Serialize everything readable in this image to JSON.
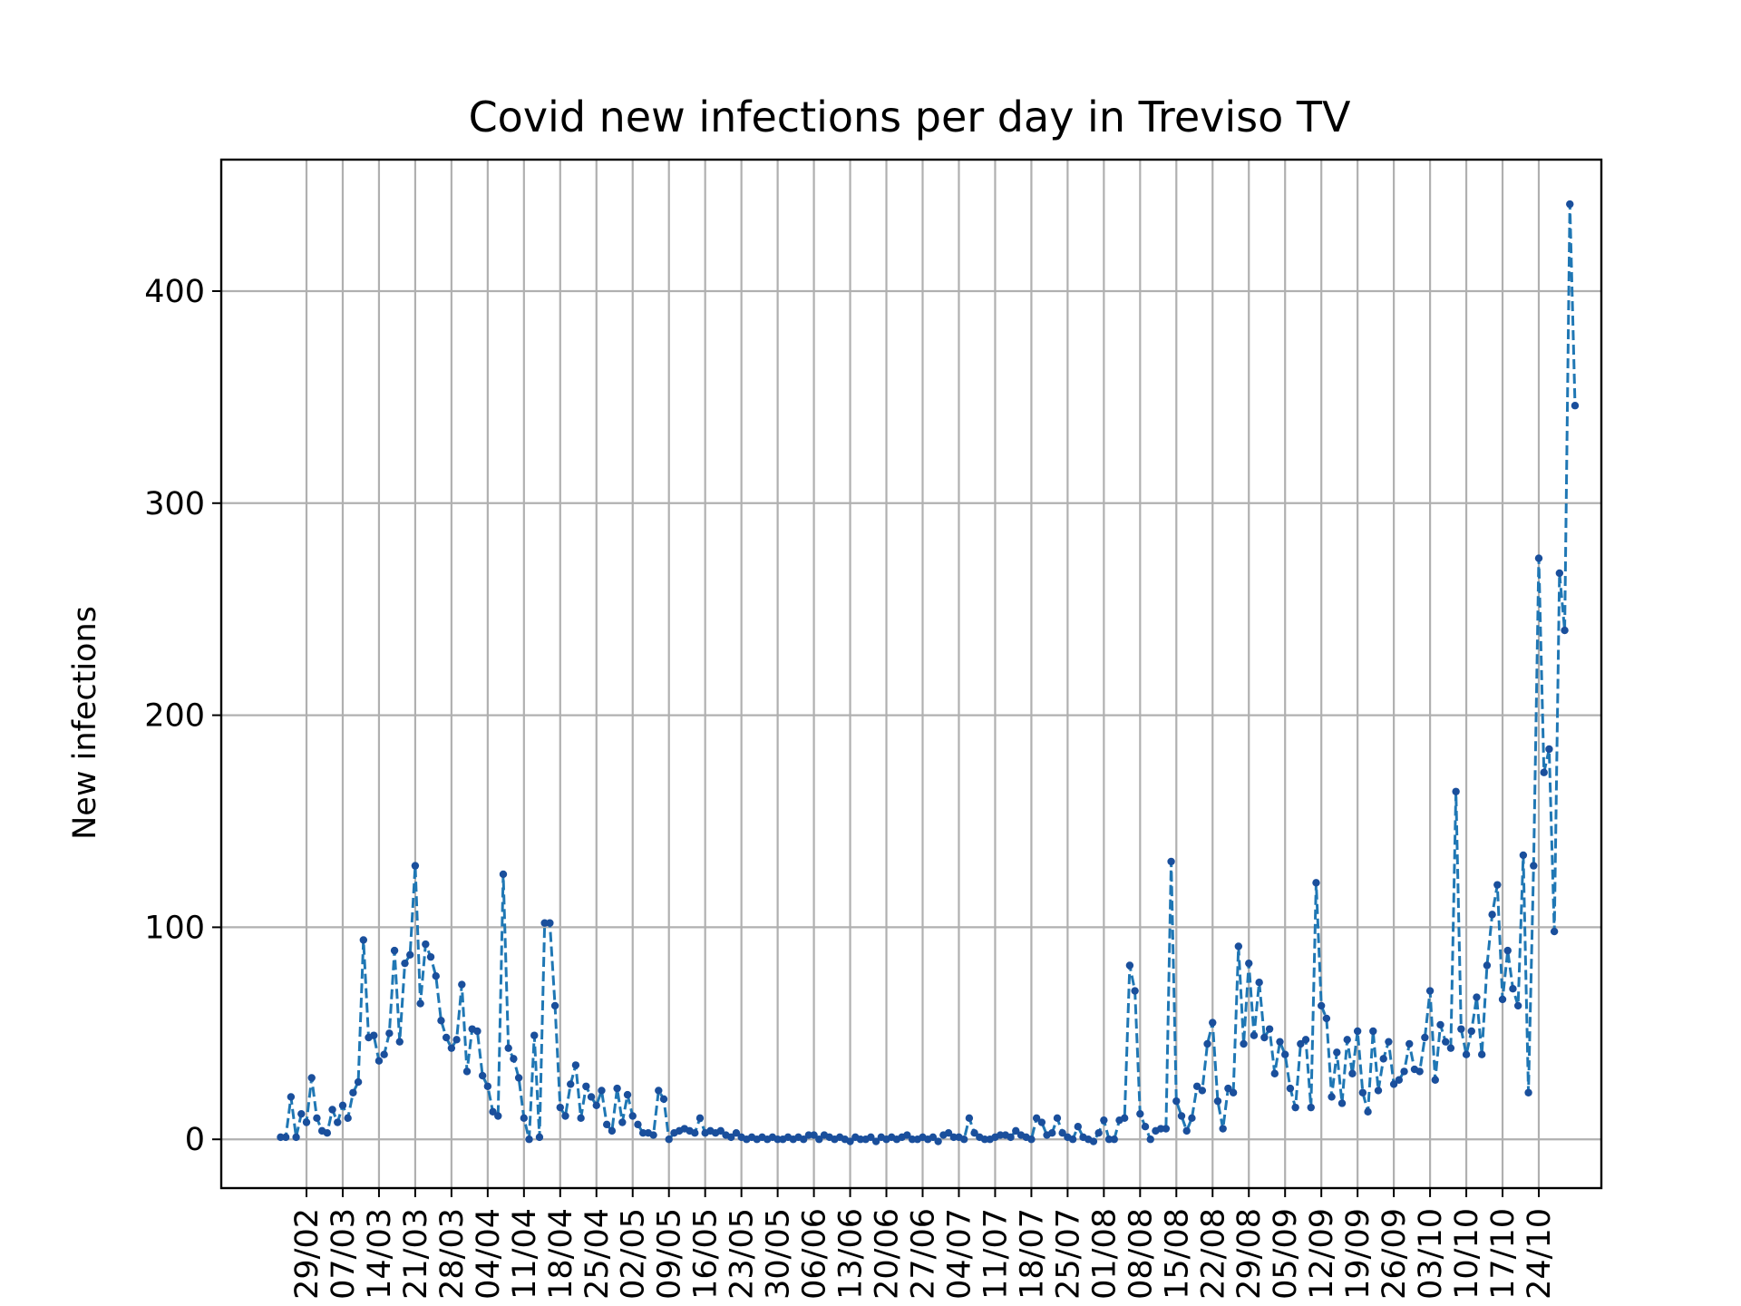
{
  "chart_data": {
    "type": "line",
    "title": "Covid new infections per day in Treviso TV",
    "xlabel": "",
    "ylabel": "New infections",
    "x_start": "2020-02-24",
    "x_ticks": [
      "29/02",
      "07/03",
      "14/03",
      "21/03",
      "28/03",
      "04/04",
      "11/04",
      "18/04",
      "25/04",
      "02/05",
      "09/05",
      "16/05",
      "23/05",
      "30/05",
      "06/06",
      "13/06",
      "20/06",
      "27/06",
      "04/07",
      "11/07",
      "18/07",
      "25/07",
      "01/08",
      "08/08",
      "15/08",
      "22/08",
      "29/08",
      "05/09",
      "12/09",
      "19/09",
      "26/09",
      "03/10",
      "10/10",
      "17/10",
      "24/10"
    ],
    "y_ticks": [
      0,
      100,
      200,
      300,
      400
    ],
    "ylim": [
      -23,
      462
    ],
    "grid": true,
    "line_style": "dashed",
    "marker": "dot",
    "colors": {
      "line": "#1f77b4",
      "marker": "#1a4f9c",
      "grid": "#b0b0b0",
      "axes": "#000000"
    },
    "series": [
      {
        "values": [
          1,
          1,
          20,
          1,
          12,
          8,
          29,
          10,
          4,
          3,
          14,
          8,
          16,
          10,
          22,
          27,
          94,
          48,
          49,
          37,
          40,
          50,
          89,
          46,
          83,
          87,
          129,
          64,
          92,
          86,
          77,
          56,
          48,
          43,
          47,
          73,
          32,
          52,
          51,
          30,
          25,
          13,
          11,
          125,
          43,
          38,
          29,
          10,
          0,
          49,
          1,
          102,
          102,
          63,
          15,
          11,
          26,
          35,
          10,
          25,
          20,
          16,
          23,
          7,
          4,
          24,
          8,
          21,
          11,
          7,
          3,
          3,
          2,
          23,
          19,
          0,
          3,
          4,
          5,
          4,
          3,
          10,
          3,
          4,
          3,
          4,
          2,
          1,
          3,
          1,
          0,
          1,
          0,
          1,
          0,
          1,
          0,
          0,
          1,
          0,
          1,
          0,
          2,
          2,
          0,
          2,
          1,
          0,
          1,
          0,
          -1,
          1,
          0,
          0,
          1,
          -1,
          1,
          0,
          1,
          0,
          1,
          2,
          0,
          0,
          1,
          0,
          1,
          -1,
          2,
          3,
          1,
          1,
          0,
          10,
          3,
          1,
          0,
          0,
          1,
          2,
          2,
          1,
          4,
          2,
          1,
          0,
          10,
          8,
          2,
          3,
          10,
          3,
          1,
          0,
          6,
          1,
          0,
          -1,
          3,
          9,
          0,
          0,
          9,
          10,
          82,
          70,
          12,
          6,
          0,
          4,
          5,
          5,
          131,
          18,
          11,
          4,
          10,
          25,
          23,
          45,
          55,
          18,
          5,
          24,
          22,
          91,
          45,
          83,
          49,
          74,
          48,
          52,
          31,
          46,
          40,
          24,
          15,
          45,
          47,
          15,
          121,
          63,
          57,
          20,
          41,
          17,
          47,
          31,
          51,
          22,
          13,
          51,
          23,
          38,
          46,
          26,
          28,
          32,
          45,
          33,
          32,
          48,
          70,
          28,
          54,
          46,
          43,
          164,
          52,
          40,
          51,
          67,
          40,
          82,
          106,
          120,
          66,
          89,
          71,
          63,
          134,
          22,
          129,
          274,
          173,
          184,
          98,
          267,
          240,
          441,
          346
        ]
      }
    ]
  }
}
